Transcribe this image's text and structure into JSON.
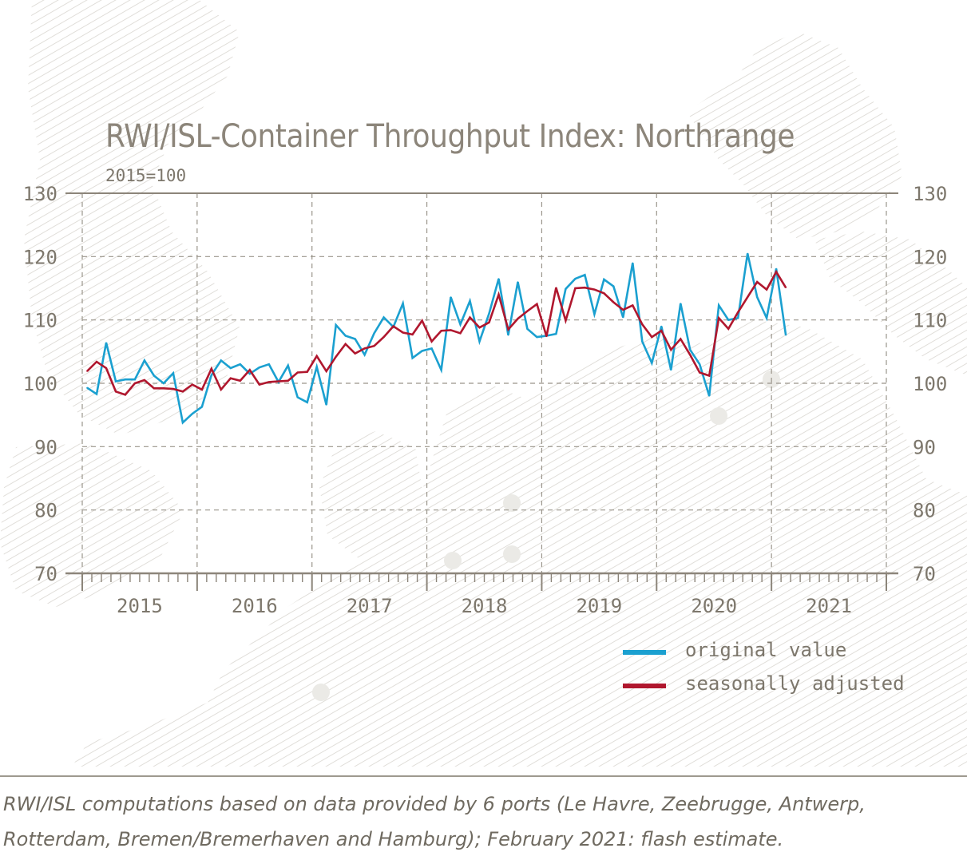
{
  "title": "RWI/ISL-Container Throughput Index: Northrange",
  "subtitle": "2015=100",
  "footnote": "RWI/ISL computations based on data provided by 6 ports (Le Havre, Zeebrugge, Antwerp, Rotterdam, Bremen/Bremerhaven and Hamburg); February 2021: flash estimate.",
  "legend": {
    "original_label": "original value",
    "adjusted_label": "seasonally adjusted"
  },
  "colors": {
    "original": "#1ba0d0",
    "adjusted": "#b0172e",
    "axis": "#8c857a",
    "grid": "#9a958b",
    "text": "#7d776c"
  },
  "chart_data": {
    "type": "line",
    "title": "RWI/ISL-Container Throughput Index: Northrange",
    "subtitle": "2015=100",
    "xlabel": "",
    "ylabel": "",
    "ylim": [
      70,
      130
    ],
    "yticks": [
      70,
      80,
      90,
      100,
      110,
      120,
      130
    ],
    "ytick_labels": [
      "70",
      "80",
      "90",
      "100",
      "110",
      "120",
      "130"
    ],
    "xlim": [
      "2015-01",
      "2021-12"
    ],
    "xtick_labels": [
      "2015",
      "2016",
      "2017",
      "2018",
      "2019",
      "2020",
      "2021"
    ],
    "grid": true,
    "legend_position": "bottom-right",
    "x": [
      "2015-01",
      "2015-02",
      "2015-03",
      "2015-04",
      "2015-05",
      "2015-06",
      "2015-07",
      "2015-08",
      "2015-09",
      "2015-10",
      "2015-11",
      "2015-12",
      "2016-01",
      "2016-02",
      "2016-03",
      "2016-04",
      "2016-05",
      "2016-06",
      "2016-07",
      "2016-08",
      "2016-09",
      "2016-10",
      "2016-11",
      "2016-12",
      "2017-01",
      "2017-02",
      "2017-03",
      "2017-04",
      "2017-05",
      "2017-06",
      "2017-07",
      "2017-08",
      "2017-09",
      "2017-10",
      "2017-11",
      "2017-12",
      "2018-01",
      "2018-02",
      "2018-03",
      "2018-04",
      "2018-05",
      "2018-06",
      "2018-07",
      "2018-08",
      "2018-09",
      "2018-10",
      "2018-11",
      "2018-12",
      "2019-01",
      "2019-02",
      "2019-03",
      "2019-04",
      "2019-05",
      "2019-06",
      "2019-07",
      "2019-08",
      "2019-09",
      "2019-10",
      "2019-11",
      "2019-12",
      "2020-01",
      "2020-02",
      "2020-03",
      "2020-04",
      "2020-05",
      "2020-06",
      "2020-07",
      "2020-08",
      "2020-09",
      "2020-10",
      "2020-11",
      "2020-12",
      "2021-01",
      "2021-02"
    ],
    "series": [
      {
        "name": "original value",
        "values": [
          99.3,
          98.3,
          106.4,
          100.3,
          100.6,
          100.6,
          103.6,
          101.2,
          100.0,
          101.6,
          93.8,
          95.2,
          96.3,
          101.3,
          103.6,
          102.4,
          103.0,
          101.5,
          102.5,
          103.0,
          100.2,
          102.8,
          97.8,
          97.0,
          102.6,
          96.6,
          109.2,
          107.5,
          107.0,
          104.5,
          107.9,
          110.4,
          108.9,
          112.6,
          104.0,
          105.1,
          105.5,
          102.1,
          113.6,
          109.3,
          113.0,
          106.6,
          111.0,
          116.5,
          107.6,
          116.0,
          108.6,
          107.3,
          107.5,
          107.8,
          114.9,
          116.5,
          117.1,
          110.9,
          116.4,
          115.3,
          110.4,
          119.0,
          106.6,
          103.2,
          109.0,
          102.1,
          112.6,
          105.3,
          103.0,
          98.0,
          112.3,
          110.0,
          110.3,
          120.5,
          113.6,
          110.3,
          118.1,
          107.6
        ]
      },
      {
        "name": "seasonally adjusted",
        "values": [
          101.9,
          103.4,
          102.4,
          98.7,
          98.2,
          100.0,
          100.5,
          99.2,
          99.2,
          99.1,
          98.7,
          99.8,
          99.0,
          102.3,
          99.0,
          100.8,
          100.4,
          102.1,
          99.8,
          100.2,
          100.3,
          100.4,
          101.7,
          101.8,
          104.3,
          101.9,
          104.2,
          106.2,
          104.7,
          105.5,
          105.9,
          107.3,
          109.0,
          108.0,
          107.7,
          109.9,
          106.6,
          108.3,
          108.4,
          107.9,
          110.4,
          108.8,
          109.6,
          114.0,
          108.5,
          110.2,
          111.4,
          112.5,
          107.4,
          115.1,
          109.9,
          115.0,
          115.1,
          114.8,
          114.2,
          112.8,
          111.6,
          112.3,
          109.3,
          107.3,
          108.3,
          105.3,
          107.0,
          104.5,
          101.7,
          101.2,
          110.3,
          108.6,
          111.2,
          113.6,
          116.0,
          114.8,
          117.6,
          115.1
        ]
      }
    ]
  }
}
